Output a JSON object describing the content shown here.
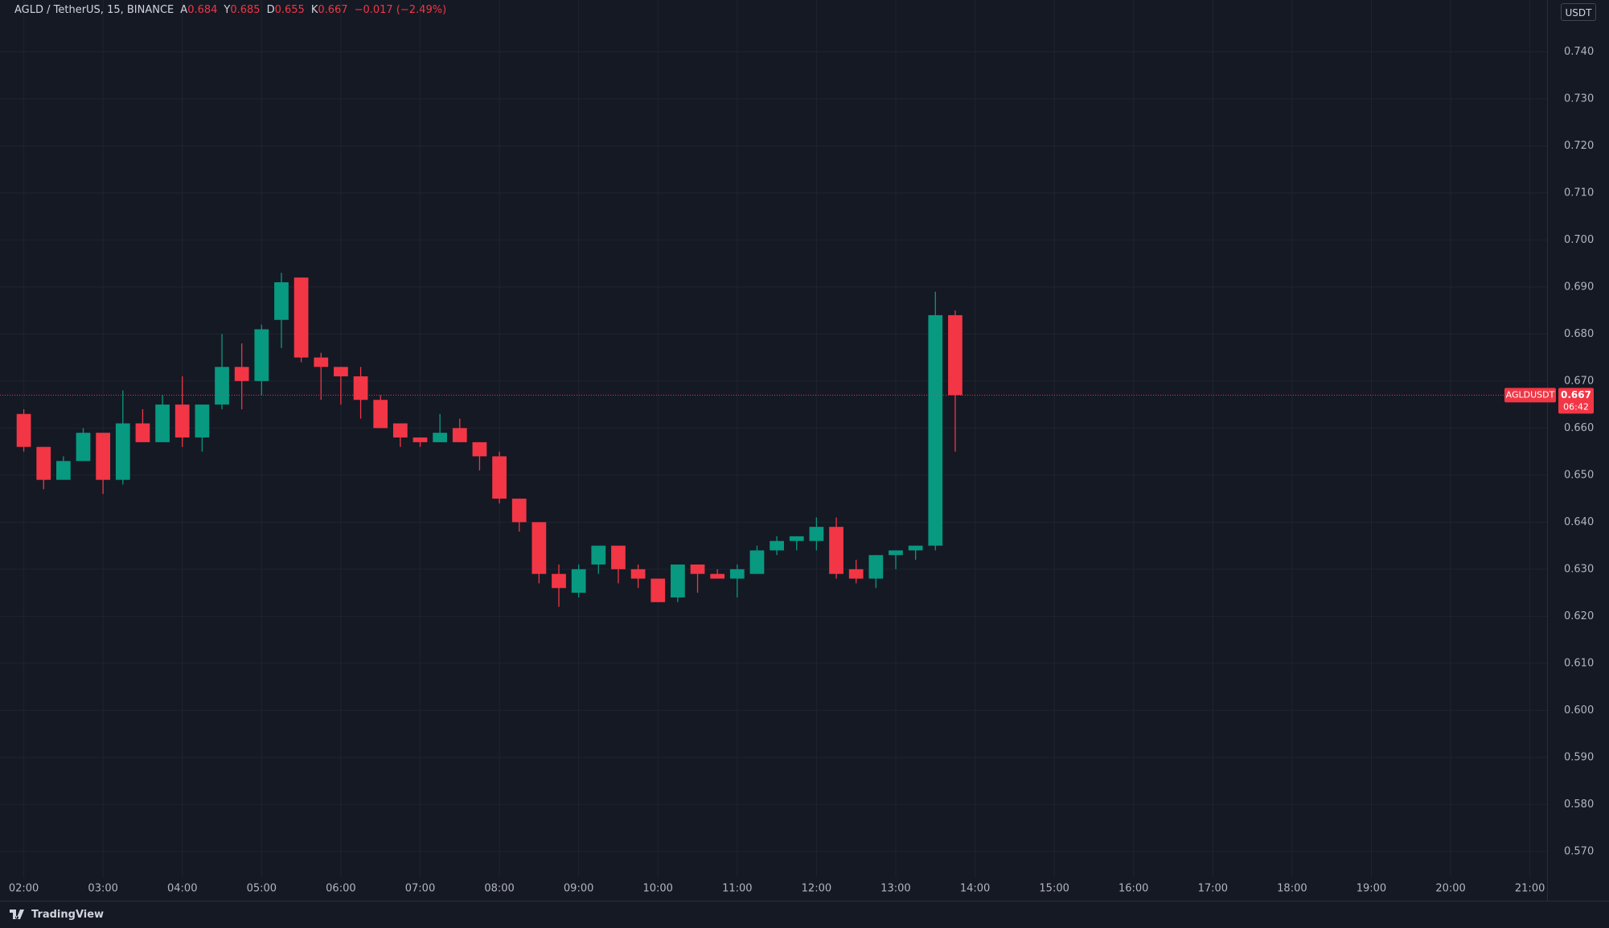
{
  "header": {
    "symbol": "AGLD / TetherUS, 15, BINANCE",
    "ohlc": [
      {
        "key": "A",
        "value": "0.684"
      },
      {
        "key": "Y",
        "value": "0.685"
      },
      {
        "key": "D",
        "value": "0.655"
      },
      {
        "key": "K",
        "value": "0.667"
      }
    ],
    "change": "−0.017 (−2.49%)"
  },
  "currency": "USDT",
  "footer": {
    "brand": "TradingView"
  },
  "chart_data": {
    "type": "candlestick",
    "name": "AGLDUSDT",
    "up_color": "#089981",
    "down_color": "#f23645",
    "x": [
      "02:00",
      "02:15",
      "02:30",
      "02:45",
      "03:00",
      "03:15",
      "03:30",
      "03:45",
      "04:00",
      "04:15",
      "04:30",
      "04:45",
      "05:00",
      "05:15",
      "05:30",
      "05:45",
      "06:00",
      "06:15",
      "06:30",
      "06:45",
      "07:00",
      "07:15",
      "07:30",
      "07:45",
      "08:00",
      "08:15",
      "08:30",
      "08:45",
      "09:00",
      "09:15",
      "09:30",
      "09:45",
      "10:00",
      "10:15",
      "10:30",
      "10:45",
      "11:00",
      "11:15",
      "11:30",
      "11:45",
      "12:00",
      "12:15",
      "12:30",
      "12:45",
      "13:00",
      "13:15",
      "13:30",
      "13:45"
    ],
    "open": [
      0.663,
      0.656,
      0.649,
      0.653,
      0.659,
      0.649,
      0.661,
      0.657,
      0.665,
      0.658,
      0.665,
      0.673,
      0.67,
      0.683,
      0.692,
      0.675,
      0.673,
      0.671,
      0.666,
      0.661,
      0.658,
      0.657,
      0.66,
      0.657,
      0.654,
      0.645,
      0.64,
      0.629,
      0.625,
      0.631,
      0.635,
      0.63,
      0.628,
      0.624,
      0.631,
      0.629,
      0.628,
      0.629,
      0.634,
      0.636,
      0.636,
      0.639,
      0.63,
      0.628,
      0.633,
      0.634,
      0.635,
      0.684
    ],
    "high": [
      0.664,
      0.656,
      0.654,
      0.66,
      0.659,
      0.668,
      0.664,
      0.667,
      0.671,
      0.665,
      0.68,
      0.678,
      0.682,
      0.693,
      0.692,
      0.676,
      0.673,
      0.673,
      0.667,
      0.661,
      0.658,
      0.663,
      0.662,
      0.657,
      0.655,
      0.645,
      0.64,
      0.631,
      0.631,
      0.635,
      0.635,
      0.631,
      0.628,
      0.631,
      0.631,
      0.63,
      0.631,
      0.635,
      0.637,
      0.637,
      0.641,
      0.641,
      0.632,
      0.633,
      0.634,
      0.635,
      0.689,
      0.685
    ],
    "low": [
      0.655,
      0.647,
      0.649,
      0.653,
      0.646,
      0.648,
      0.657,
      0.657,
      0.656,
      0.655,
      0.664,
      0.664,
      0.667,
      0.677,
      0.674,
      0.666,
      0.665,
      0.662,
      0.66,
      0.656,
      0.656,
      0.657,
      0.657,
      0.651,
      0.644,
      0.638,
      0.627,
      0.622,
      0.624,
      0.629,
      0.627,
      0.626,
      0.623,
      0.623,
      0.625,
      0.628,
      0.624,
      0.629,
      0.633,
      0.634,
      0.634,
      0.628,
      0.627,
      0.626,
      0.63,
      0.632,
      0.634,
      0.655
    ],
    "close": [
      0.656,
      0.649,
      0.653,
      0.659,
      0.649,
      0.661,
      0.657,
      0.665,
      0.658,
      0.665,
      0.673,
      0.67,
      0.681,
      0.691,
      0.675,
      0.673,
      0.671,
      0.666,
      0.66,
      0.658,
      0.657,
      0.659,
      0.657,
      0.654,
      0.645,
      0.64,
      0.629,
      0.626,
      0.63,
      0.635,
      0.63,
      0.628,
      0.623,
      0.631,
      0.629,
      0.628,
      0.63,
      0.634,
      0.636,
      0.637,
      0.639,
      0.629,
      0.628,
      0.633,
      0.634,
      0.635,
      0.684,
      0.667
    ],
    "xlim": [
      "01:42",
      "21:13"
    ],
    "xticks": [
      "02:00",
      "03:00",
      "04:00",
      "05:00",
      "06:00",
      "07:00",
      "08:00",
      "09:00",
      "10:00",
      "11:00",
      "12:00",
      "13:00",
      "14:00",
      "15:00",
      "16:00",
      "17:00",
      "18:00",
      "19:00",
      "20:00",
      "21:00"
    ],
    "ylim": [
      0.5645,
      0.751
    ],
    "yticks": [
      {
        "value": 0.57,
        "label": "0.570"
      },
      {
        "value": 0.58,
        "label": "0.580"
      },
      {
        "value": 0.59,
        "label": "0.590"
      },
      {
        "value": 0.6,
        "label": "0.600"
      },
      {
        "value": 0.61,
        "label": "0.610"
      },
      {
        "value": 0.62,
        "label": "0.620"
      },
      {
        "value": 0.63,
        "label": "0.630"
      },
      {
        "value": 0.64,
        "label": "0.640"
      },
      {
        "value": 0.65,
        "label": "0.650"
      },
      {
        "value": 0.66,
        "label": "0.660"
      },
      {
        "value": 0.67,
        "label": "0.670"
      },
      {
        "value": 0.68,
        "label": "0.680"
      },
      {
        "value": 0.69,
        "label": "0.690"
      },
      {
        "value": 0.7,
        "label": "0.700"
      },
      {
        "value": 0.71,
        "label": "0.710"
      },
      {
        "value": 0.72,
        "label": "0.720"
      },
      {
        "value": 0.73,
        "label": "0.730"
      },
      {
        "value": 0.74,
        "label": "0.740"
      }
    ],
    "grid": true,
    "price_line": {
      "value": 0.667,
      "countdown": "06:42"
    }
  }
}
